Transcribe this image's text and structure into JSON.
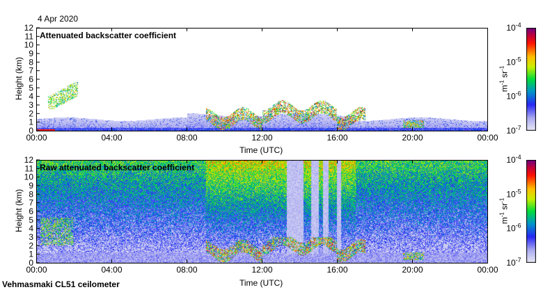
{
  "header": {
    "date": "4 Apr 2020"
  },
  "footer": {
    "instrument": "Vehmasmaki CL51 ceilometer"
  },
  "chart_data": [
    {
      "type": "heatmap",
      "title": "Attenuated backscatter coefficient",
      "xlabel": "Time (UTC)",
      "ylabel": "Height (km)",
      "xticks": [
        "00:00",
        "04:00",
        "08:00",
        "12:00",
        "16:00",
        "20:00",
        "00:00"
      ],
      "yticks": [
        "0",
        "1",
        "2",
        "3",
        "4",
        "5",
        "6",
        "7",
        "8",
        "9",
        "10",
        "11",
        "12"
      ],
      "xlim_hours": [
        0,
        24
      ],
      "ylim_km": [
        0,
        12
      ],
      "colorbar": {
        "label": "m-1 sr-1",
        "scale": "log",
        "range": [
          1e-07,
          0.0001
        ],
        "ticks": [
          "10^-7",
          "10^-6",
          "10^-5",
          "10^-4"
        ]
      },
      "features": [
        {
          "kind": "boundary-layer",
          "time_h": [
            0,
            24
          ],
          "height_km": [
            0,
            1.5
          ]
        },
        {
          "kind": "aerosol-layer",
          "time_h": [
            0.5,
            2.2
          ],
          "height_km": [
            2.5,
            5.5
          ]
        },
        {
          "kind": "clouds",
          "time_h": [
            9,
            17.5
          ],
          "height_km": [
            0.5,
            3
          ]
        },
        {
          "kind": "clouds",
          "time_h": [
            19.5,
            20.5
          ],
          "height_km": [
            0.3,
            1.2
          ]
        }
      ]
    },
    {
      "type": "heatmap",
      "title": "Raw attenuated backscatter coefficient",
      "xlabel": "Time (UTC)",
      "ylabel": "Height (km)",
      "xticks": [
        "00:00",
        "04:00",
        "08:00",
        "12:00",
        "16:00",
        "20:00",
        "00:00"
      ],
      "yticks": [
        "0",
        "1",
        "2",
        "3",
        "4",
        "5",
        "6",
        "7",
        "8",
        "9",
        "10",
        "11",
        "12"
      ],
      "xlim_hours": [
        0,
        24
      ],
      "ylim_km": [
        0,
        12
      ],
      "colorbar": {
        "label": "m-1 sr-1",
        "scale": "log",
        "range": [
          1e-07,
          0.0001
        ],
        "ticks": [
          "10^-7",
          "10^-6",
          "10^-5",
          "10^-4"
        ]
      }
    }
  ],
  "colorbar_unit": {
    "base1": "m",
    "exp1": "-1",
    "base2": " sr",
    "exp2": "-1"
  }
}
